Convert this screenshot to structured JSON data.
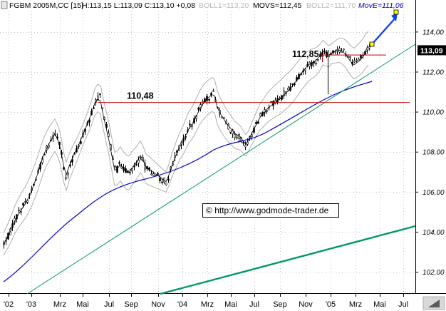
{
  "header": {
    "symbol": "FGBM 2005M,CC [15]",
    "ohlc": "H:113,15 L:113,09 C:113,10 +0,08",
    "boll1": "BOLL1=113,20",
    "movs": "MOVS=112,45",
    "boll2": "BOLL2=111,70",
    "move": "MovE=111,06"
  },
  "watermark": {
    "copyright": "©",
    "url": "http://www.godmode-trader.de"
  },
  "chart_data": {
    "type": "candlestick",
    "x_ticks": [
      "'02",
      "'03",
      "Mrz",
      "Mai",
      "Jul",
      "Sep",
      "Nov",
      "'04",
      "Mrz",
      "Mai",
      "Jul",
      "Sep",
      "Nov",
      "'05",
      "Mrz",
      "Mai",
      "Jul"
    ],
    "y_ticks": [
      "114,00",
      "112,00",
      "110,00",
      "108,00",
      "106,00",
      "104,00",
      "102,00"
    ],
    "y_tick_values": [
      114,
      112,
      110,
      108,
      106,
      104,
      102
    ],
    "ylim": [
      100.95,
      115.6
    ],
    "last_price": "113,09",
    "last_value": 113.09,
    "levels": [
      {
        "label": "110,48",
        "value": 110.48
      },
      {
        "label": "112,85",
        "value": 112.85
      }
    ],
    "colors": {
      "candles": "#000000",
      "bollinger": "#b0b0b0",
      "moving_average_short": "#000000",
      "moving_average_long": "#0000cc",
      "trendlines": "#009966",
      "resistance": "#cc0000",
      "projection_arrow": "#1144ee",
      "grid": "#c8c8c8"
    },
    "grid": true
  }
}
